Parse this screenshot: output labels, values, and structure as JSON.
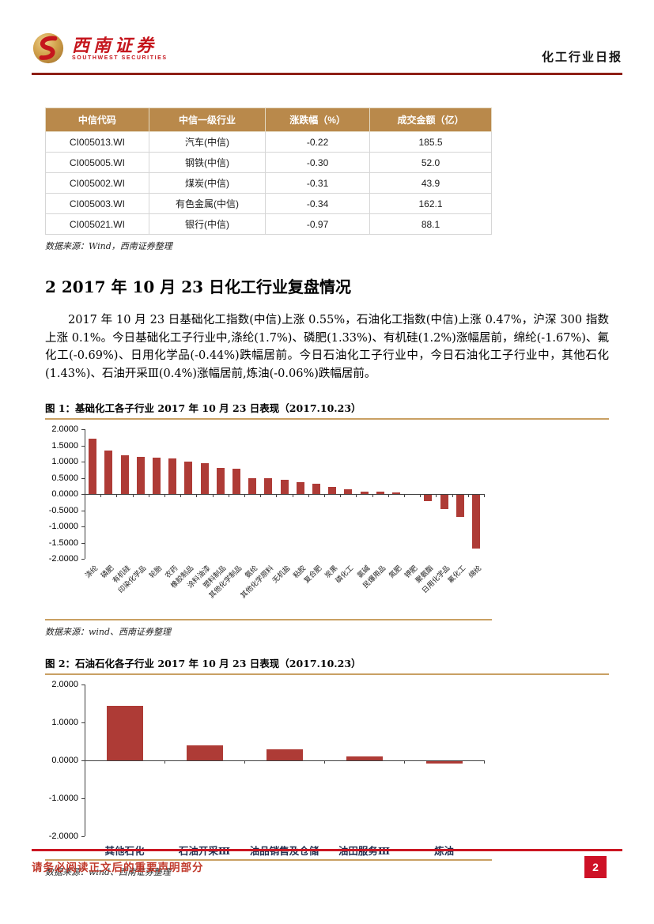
{
  "header": {
    "brand_cn": "西南证券",
    "brand_en": "SOUTHWEST SECURITIES",
    "report_title": "化工行业日报"
  },
  "table": {
    "headers": [
      "中信代码",
      "中信一级行业",
      "涨跌幅（%）",
      "成交金额（亿）"
    ],
    "rows": [
      [
        "CI005013.WI",
        "汽车(中信)",
        "-0.22",
        "185.5"
      ],
      [
        "CI005005.WI",
        "钢铁(中信)",
        "-0.30",
        "52.0"
      ],
      [
        "CI005002.WI",
        "煤炭(中信)",
        "-0.31",
        "43.9"
      ],
      [
        "CI005003.WI",
        "有色金属(中信)",
        "-0.34",
        "162.1"
      ],
      [
        "CI005021.WI",
        "银行(中信)",
        "-0.97",
        "88.1"
      ]
    ],
    "source": "数据来源：Wind，西南证券整理"
  },
  "section": {
    "heading": "2 2017 年 10 月 23 日化工行业复盘情况",
    "paragraph": "2017 年 10 月 23 日基础化工指数(中信)上涨 0.55%，石油化工指数(中信)上涨 0.47%，沪深 300 指数上涨 0.1%。今日基础化工子行业中,涤纶(1.7%)、磷肥(1.33%)、有机硅(1.2%)涨幅居前，绵纶(-1.67%)、氟化工(-0.69%)、日用化学品(-0.44%)跌幅居前。今日石油化工子行业中，今日石油化工子行业中，其他石化(1.43%)、石油开采Ⅲ(0.4%)涨幅居前,炼油(-0.06%)跌幅居前。"
  },
  "figure1": {
    "title": "图 1：基础化工各子行业 2017 年 10 月 23 日表现（2017.10.23）",
    "source": "数据来源：wind、西南证券整理"
  },
  "figure2": {
    "title": "图 2：石油石化各子行业 2017 年 10 月 23 日表现（2017.10.23）",
    "source": "数据来源：wind、西南证券整理"
  },
  "chart_data": [
    {
      "type": "bar",
      "title": "基础化工各子行业 2017 年 10 月 23 日表现（2017.10.23）",
      "categories": [
        "涤纶",
        "磷肥",
        "有机硅",
        "印染化学品",
        "轮胎",
        "农药",
        "橡胶制品",
        "涂料油漆",
        "塑料制品",
        "其他化学制品",
        "氨纶",
        "其他化学原料",
        "无机盐",
        "粘胶",
        "复合肥",
        "炭黑",
        "磷化工",
        "氯碱",
        "民爆用品",
        "氮肥",
        "钾肥",
        "聚氨酯",
        "日用化学品",
        "氟化工",
        "绵纶"
      ],
      "values": [
        1.7,
        1.33,
        1.2,
        1.15,
        1.12,
        1.1,
        1.0,
        0.95,
        0.8,
        0.78,
        0.5,
        0.5,
        0.45,
        0.37,
        0.31,
        0.23,
        0.15,
        0.08,
        0.08,
        0.05,
        0.0,
        -0.2,
        -0.44,
        -0.69,
        -1.67
      ],
      "ylim": [
        -2,
        2
      ],
      "ytick_step": 0.5,
      "ytick_decimals": 4,
      "bar_color": "#AE3B36",
      "grid": false,
      "legend": false,
      "xlabel_rotation": -45
    },
    {
      "type": "bar",
      "title": "石油石化各子行业 2017 年 10 月 23 日表现（2017.10.23）",
      "categories": [
        "其他石化",
        "石油开采Ⅲ",
        "油品销售及仓储",
        "油田服务Ⅲ",
        "炼油"
      ],
      "values": [
        1.43,
        0.4,
        0.3,
        0.1,
        -0.06
      ],
      "ylim": [
        -2,
        2
      ],
      "ytick_step": 1,
      "ytick_decimals": 4,
      "bar_color": "#AE3B36",
      "grid": false,
      "legend": false,
      "xlabel_rotation": 0
    }
  ],
  "footer": {
    "disclaimer": "请务必阅读正文后的重要声明部分",
    "page_number": "2"
  },
  "colors": {
    "brand_red": "#C5161D",
    "header_rule": "#8E1F15",
    "table_header_gold": "#B9894B",
    "figure_rule_gold": "#C9A063",
    "bar_red": "#AE3B36",
    "footer_red": "#CB1622",
    "badge_red": "#CE1126"
  }
}
